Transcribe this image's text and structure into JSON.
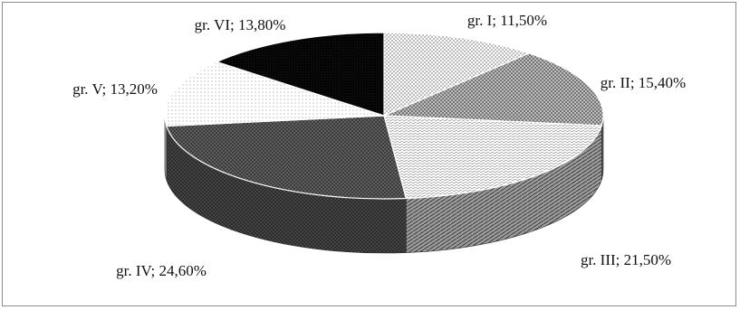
{
  "chart_data": {
    "type": "pie",
    "labels": [
      "gr. I",
      "gr. II",
      "gr. III",
      "gr. IV",
      "gr. V",
      "gr. VI"
    ],
    "values": [
      11.5,
      15.4,
      21.5,
      24.6,
      13.2,
      13.8
    ],
    "data_labels": [
      "gr. I; 11,50%",
      "gr. II; 15,40%",
      "gr. III; 21,50%",
      "gr. IV; 24,60%",
      "gr. V; 13,20%",
      "gr. VI; 13,80%"
    ],
    "style": "3d",
    "legend": "none",
    "colors": [
      "#d7d7d7",
      "#8c8c8c",
      "#ececec",
      "#4b4b4b",
      "#f5f5f5",
      "#0d0d0d"
    ]
  }
}
